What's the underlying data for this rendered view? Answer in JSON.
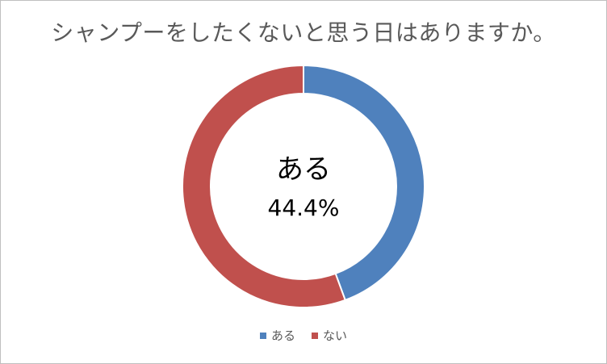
{
  "chart_data": {
    "type": "pie",
    "title": "シャンプーをしたくないと思う日はありますか。",
    "categories": [
      "ある",
      "ない"
    ],
    "values": [
      44.4,
      55.6
    ],
    "colors": [
      "#4f81bd",
      "#c0504d"
    ],
    "donut": true,
    "center_label": {
      "category": "ある",
      "value_text": "44.4%"
    },
    "legend": "bottom"
  }
}
